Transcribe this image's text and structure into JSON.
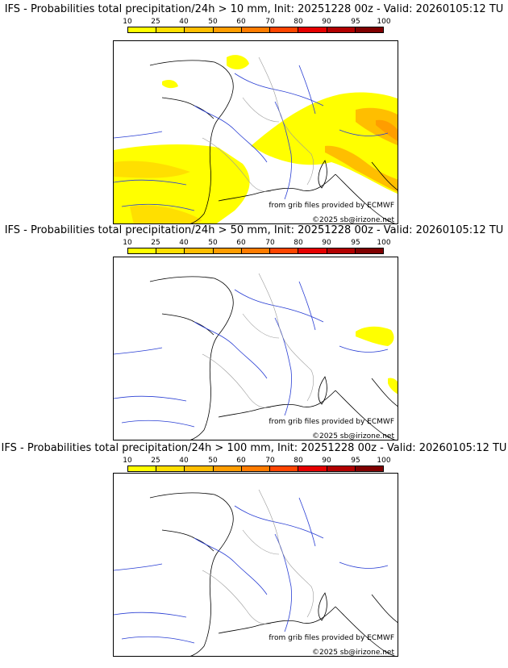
{
  "colorbar": {
    "ticks": [
      "10",
      "25",
      "40",
      "50",
      "60",
      "70",
      "80",
      "90",
      "95",
      "100"
    ],
    "colors": [
      "#ffff00",
      "#ffdf00",
      "#ffbe00",
      "#ff9d00",
      "#ff7c00",
      "#ff4500",
      "#e60000",
      "#b20000",
      "#800000"
    ]
  },
  "credit": {
    "source": "from grib files provided by ECMWF",
    "copyright": "©2025 sb@irizone.net"
  },
  "panels": [
    {
      "title": "IFS - Probabilities total precipitation/24h > 10 mm, Init: 20251228 00z - Valid: 20260105:12 TU"
    },
    {
      "title": "IFS - Probabilities total precipitation/24h > 50 mm, Init: 20251228 00z - Valid: 20260105:12 TU"
    },
    {
      "title": "IFS - Probabilities total precipitation/24h > 100 mm, Init: 20251228 00z - Valid: 20260105:12 TU"
    }
  ]
}
